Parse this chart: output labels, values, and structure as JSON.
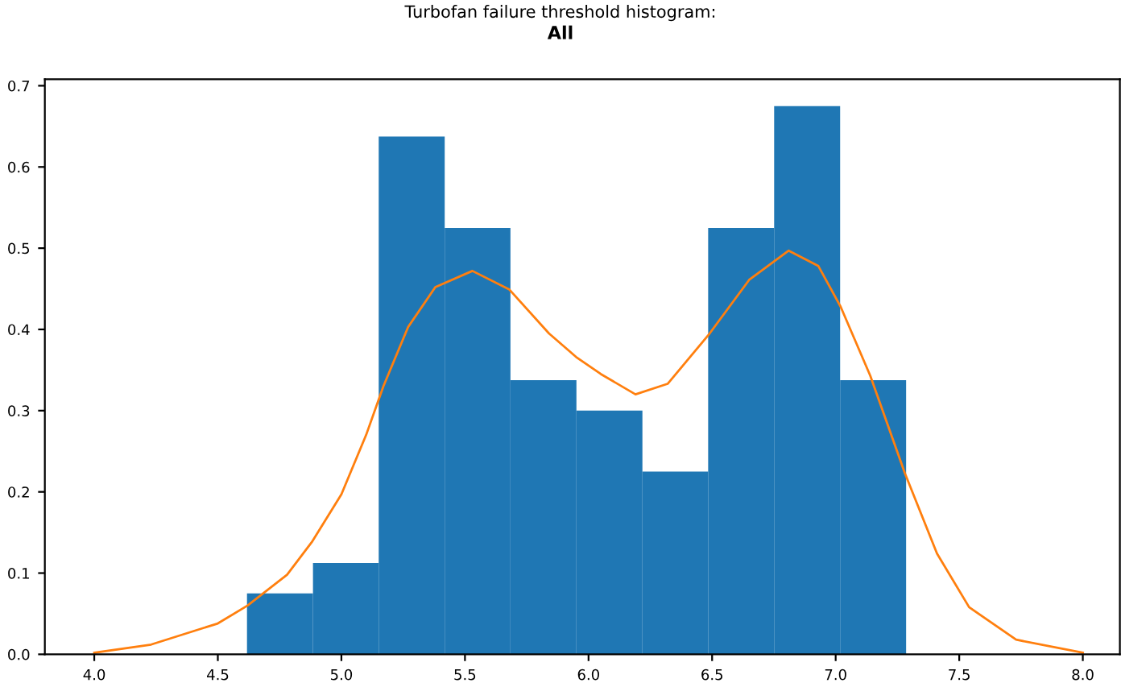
{
  "chart_data": {
    "type": "histogram",
    "title": "Turbofan failure threshold histogram:",
    "subtitle": "All",
    "bins": [
      4.618,
      4.885,
      5.151,
      5.418,
      5.684,
      5.951,
      6.218,
      6.484,
      6.751,
      7.018,
      7.285
    ],
    "values": [
      0.075,
      0.1125,
      0.6375,
      0.525,
      0.3375,
      0.3,
      0.225,
      0.525,
      0.675,
      0.3375
    ],
    "color": "#1f77b4",
    "series": [
      {
        "type": "line",
        "color": "#ff7f0e",
        "x": [
          4.0,
          4.23,
          4.5,
          4.62,
          4.78,
          4.88,
          5.0,
          5.1,
          5.17,
          5.27,
          5.38,
          5.53,
          5.68,
          5.84,
          5.95,
          6.05,
          6.19,
          6.32,
          6.49,
          6.65,
          6.81,
          6.93,
          7.02,
          7.14,
          7.28,
          7.41,
          7.54,
          7.73,
          8.0
        ],
        "values": [
          0.002,
          0.012,
          0.038,
          0.06,
          0.098,
          0.138,
          0.197,
          0.27,
          0.33,
          0.403,
          0.452,
          0.472,
          0.449,
          0.395,
          0.366,
          0.345,
          0.32,
          0.333,
          0.395,
          0.461,
          0.497,
          0.478,
          0.428,
          0.343,
          0.223,
          0.124,
          0.058,
          0.018,
          0.002
        ]
      }
    ],
    "xlim": [
      3.8,
      8.15
    ],
    "ylim": [
      0,
      0.708
    ],
    "xticks": [
      {
        "value": 4.0,
        "label": "4.0"
      },
      4.5,
      {
        "value": 5.0,
        "label": "5.0"
      },
      5.5,
      {
        "value": 6.0,
        "label": "6.0"
      },
      6.5,
      {
        "value": 7.0,
        "label": "7.0"
      },
      7.5,
      {
        "value": 8.0,
        "label": "8.0"
      }
    ],
    "yticks": [
      {
        "value": 0,
        "label": "0.0"
      },
      0.1,
      0.2,
      0.3,
      0.4,
      0.5,
      0.6,
      0.7
    ],
    "grid": false,
    "legend": false
  }
}
